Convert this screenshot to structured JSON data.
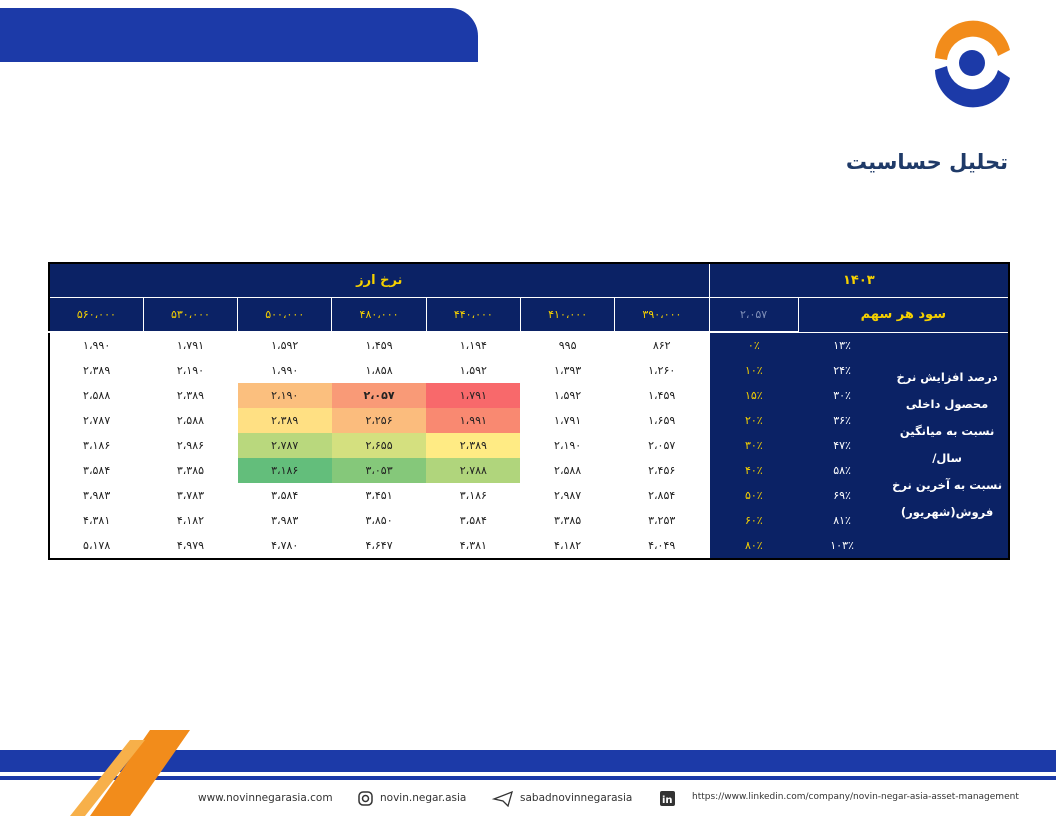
{
  "header": {
    "title": "تحلیل حساسیت"
  },
  "table": {
    "year": "۱۴۰۳",
    "axis_label": "نرخ ارز",
    "eps_label": "سود هر سهم",
    "eps_value": "۲،۰۵۷",
    "columns": [
      "۳۹۰،۰۰۰",
      "۴۱۰،۰۰۰",
      "۴۴۰،۰۰۰",
      "۴۸۰،۰۰۰",
      "۵۰۰،۰۰۰",
      "۵۳۰،۰۰۰",
      "۵۶۰،۰۰۰"
    ],
    "row_label": [
      "درصد افزایش نرخ",
      "محصول داخلی",
      "نسبت به میانگین سال/",
      "نسبت به آخرین نرخ",
      "فروش(شهریور)"
    ],
    "rows": [
      {
        "growth": "۱۳٪",
        "increase": "۰٪",
        "cells": [
          "۸۶۲",
          "۹۹۵",
          "۱،۱۹۴",
          "۱،۴۵۹",
          "۱،۵۹۲",
          "۱،۷۹۱",
          "۱،۹۹۰"
        ]
      },
      {
        "growth": "۲۴٪",
        "increase": "۱۰٪",
        "cells": [
          "۱،۲۶۰",
          "۱،۳۹۳",
          "۱،۵۹۲",
          "۱،۸۵۸",
          "۱،۹۹۰",
          "۲،۱۹۰",
          "۲،۳۸۹"
        ]
      },
      {
        "growth": "۳۰٪",
        "increase": "۱۵٪",
        "cells": [
          "۱،۴۵۹",
          "۱،۵۹۲",
          "۱،۷۹۱",
          "۲،۰۵۷",
          "۲،۱۹۰",
          "۲،۳۸۹",
          "۲،۵۸۸"
        ]
      },
      {
        "growth": "۳۶٪",
        "increase": "۲۰٪",
        "cells": [
          "۱،۶۵۹",
          "۱،۷۹۱",
          "۱،۹۹۱",
          "۲،۲۵۶",
          "۲،۳۸۹",
          "۲،۵۸۸",
          "۲،۷۸۷"
        ]
      },
      {
        "growth": "۴۷٪",
        "increase": "۳۰٪",
        "cells": [
          "۲،۰۵۷",
          "۲،۱۹۰",
          "۲،۳۸۹",
          "۲،۶۵۵",
          "۲،۷۸۷",
          "۲،۹۸۶",
          "۳،۱۸۶"
        ]
      },
      {
        "growth": "۵۸٪",
        "increase": "۴۰٪",
        "cells": [
          "۲،۴۵۶",
          "۲،۵۸۸",
          "۲،۷۸۸",
          "۳،۰۵۳",
          "۳،۱۸۶",
          "۳،۳۸۵",
          "۳،۵۸۴"
        ]
      },
      {
        "growth": "۶۹٪",
        "increase": "۵۰٪",
        "cells": [
          "۲،۸۵۴",
          "۲،۹۸۷",
          "۳،۱۸۶",
          "۳،۴۵۱",
          "۳،۵۸۴",
          "۳،۷۸۳",
          "۳،۹۸۳"
        ]
      },
      {
        "growth": "۸۱٪",
        "increase": "۶۰٪",
        "cells": [
          "۳،۲۵۳",
          "۳،۳۸۵",
          "۳،۵۸۴",
          "۳،۸۵۰",
          "۳،۹۸۳",
          "۴،۱۸۲",
          "۴،۳۸۱"
        ]
      },
      {
        "growth": "۱۰۳٪",
        "increase": "۸۰٪",
        "cells": [
          "۴،۰۴۹",
          "۴،۱۸۲",
          "۴،۳۸۱",
          "۴،۶۴۷",
          "۴،۷۸۰",
          "۴،۹۷۹",
          "۵،۱۷۸"
        ]
      }
    ]
  },
  "footer": {
    "website": "www.novinnegarasia.com",
    "instagram": "novin.negar.asia",
    "telegram": "sabadnovinnegarasia",
    "linkedin": "https://www.linkedin.com/company/novin-negar-asia-asset-management"
  }
}
